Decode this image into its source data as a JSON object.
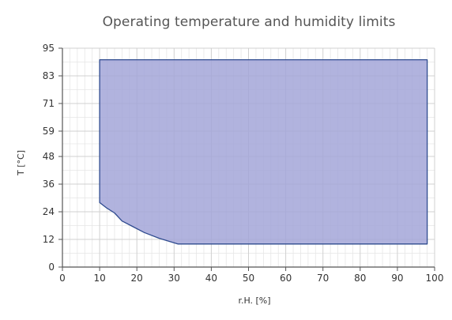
{
  "chart_data": {
    "type": "area",
    "title": "Operating temperature and humidity limits",
    "xlabel": "r.H. [%]",
    "ylabel": "T [°C]",
    "xlim": [
      0,
      100
    ],
    "ylim": [
      0,
      95
    ],
    "x_ticks": [
      0,
      10,
      20,
      30,
      40,
      50,
      60,
      70,
      80,
      90,
      100
    ],
    "y_ticks": [
      0,
      12,
      24,
      36,
      48,
      59,
      71,
      83,
      95
    ],
    "grid": true,
    "legend": "none",
    "series": [
      {
        "points": [
          [
            10,
            90
          ],
          [
            98,
            90
          ],
          [
            98,
            10
          ],
          [
            31,
            10
          ],
          [
            26,
            12.5
          ],
          [
            22,
            15
          ],
          [
            19,
            17.5
          ],
          [
            16,
            20
          ],
          [
            14,
            23.5
          ],
          [
            12,
            25.5
          ],
          [
            10,
            28
          ]
        ]
      }
    ],
    "colors": {
      "fill": "#a3a6d8",
      "stroke": "#2f4b8f",
      "grid": "#d0d0d0",
      "axis": "#555555"
    }
  }
}
